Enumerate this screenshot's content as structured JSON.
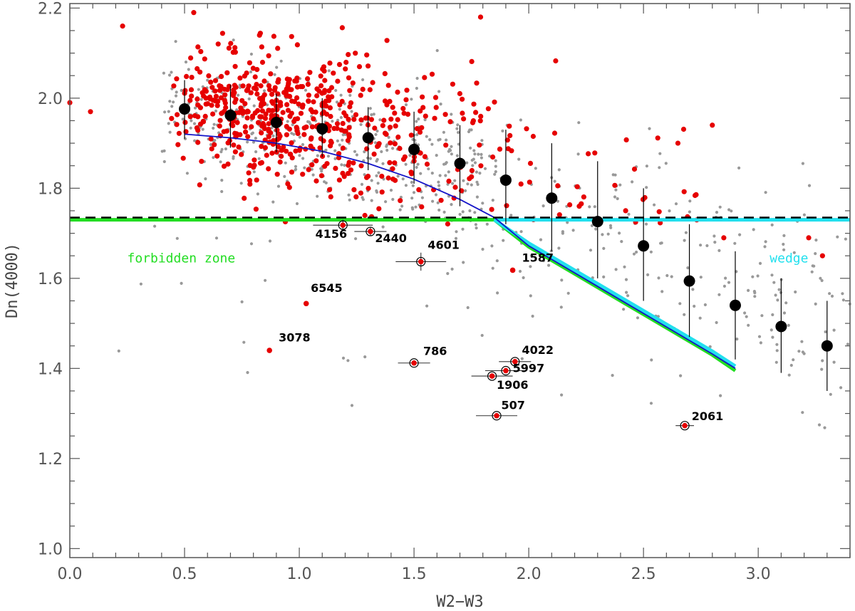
{
  "chart_data": {
    "type": "scatter",
    "xlabel": "W2−W3",
    "ylabel": "Dn(4000)",
    "xlim": [
      0.0,
      3.4
    ],
    "ylim": [
      0.98,
      2.21
    ],
    "x_ticks": [
      "0.0",
      "0.5",
      "1.0",
      "1.5",
      "2.0",
      "2.5",
      "3.0"
    ],
    "x_tick_values": [
      0.0,
      0.5,
      1.0,
      1.5,
      2.0,
      2.5,
      3.0
    ],
    "y_ticks": [
      "1.0",
      "1.2",
      "1.4",
      "1.6",
      "1.8",
      "2.0",
      "2.2"
    ],
    "y_tick_values": [
      1.0,
      1.2,
      1.4,
      1.6,
      1.8,
      2.0,
      2.2
    ],
    "colors": {
      "background_points": "#999999",
      "red_points": "#e60000",
      "binned_means": "#000000",
      "blue_curve": "#1414c8",
      "green_line": "#22dd22",
      "cyan_line": "#22e0ee",
      "dashed_line": "#000000"
    },
    "zone_labels": [
      {
        "text": "forbidden zone",
        "x": 0.25,
        "y": 1.635,
        "color": "#22dd22"
      },
      {
        "text": "wedge",
        "x": 3.05,
        "y": 1.635,
        "color": "#22e0ee"
      }
    ],
    "dashed_threshold": 1.735,
    "green_line": [
      [
        0.0,
        1.73
      ],
      [
        1.85,
        1.73
      ],
      [
        2.0,
        1.67
      ],
      [
        2.2,
        1.61
      ],
      [
        2.4,
        1.55
      ],
      [
        2.6,
        1.49
      ],
      [
        2.8,
        1.43
      ],
      [
        2.9,
        1.395
      ]
    ],
    "cyan_line": [
      [
        1.85,
        1.73
      ],
      [
        3.4,
        1.73
      ]
    ],
    "cyan_diag": [
      [
        1.85,
        1.73
      ],
      [
        2.0,
        1.678
      ],
      [
        2.2,
        1.618
      ],
      [
        2.4,
        1.558
      ],
      [
        2.6,
        1.498
      ],
      [
        2.8,
        1.438
      ],
      [
        2.9,
        1.405
      ]
    ],
    "blue_curve": [
      [
        0.5,
        1.92
      ],
      [
        0.7,
        1.912
      ],
      [
        0.9,
        1.9
      ],
      [
        1.1,
        1.882
      ],
      [
        1.3,
        1.855
      ],
      [
        1.5,
        1.82
      ],
      [
        1.7,
        1.775
      ],
      [
        1.85,
        1.735
      ],
      [
        2.0,
        1.672
      ],
      [
        2.2,
        1.612
      ],
      [
        2.4,
        1.552
      ],
      [
        2.6,
        1.492
      ],
      [
        2.8,
        1.432
      ],
      [
        2.9,
        1.4
      ]
    ],
    "binned_means": [
      {
        "x": 0.5,
        "y": 1.976,
        "lo": 1.91,
        "hi": 2.04
      },
      {
        "x": 0.7,
        "y": 1.962,
        "lo": 1.89,
        "hi": 2.03
      },
      {
        "x": 0.9,
        "y": 1.946,
        "lo": 1.88,
        "hi": 2.01
      },
      {
        "x": 1.1,
        "y": 1.932,
        "lo": 1.87,
        "hi": 2.0
      },
      {
        "x": 1.3,
        "y": 1.912,
        "lo": 1.84,
        "hi": 1.98
      },
      {
        "x": 1.5,
        "y": 1.886,
        "lo": 1.81,
        "hi": 1.97
      },
      {
        "x": 1.7,
        "y": 1.855,
        "lo": 1.76,
        "hi": 1.94
      },
      {
        "x": 1.9,
        "y": 1.818,
        "lo": 1.72,
        "hi": 1.93
      },
      {
        "x": 2.1,
        "y": 1.778,
        "lo": 1.66,
        "hi": 1.9
      },
      {
        "x": 2.3,
        "y": 1.726,
        "lo": 1.6,
        "hi": 1.86
      },
      {
        "x": 2.5,
        "y": 1.672,
        "lo": 1.55,
        "hi": 1.8
      },
      {
        "x": 2.7,
        "y": 1.594,
        "lo": 1.47,
        "hi": 1.72
      },
      {
        "x": 2.9,
        "y": 1.54,
        "lo": 1.42,
        "hi": 1.66
      },
      {
        "x": 3.1,
        "y": 1.493,
        "lo": 1.39,
        "hi": 1.6
      },
      {
        "x": 3.3,
        "y": 1.45,
        "lo": 1.35,
        "hi": 1.55
      }
    ],
    "labeled_sources": [
      {
        "label": "4156",
        "x": 1.19,
        "y": 1.718,
        "xerr": 0.13,
        "yerr": 0.012,
        "circled": true,
        "tx": 1.07,
        "ty": 1.69
      },
      {
        "label": "2440",
        "x": 1.31,
        "y": 1.704,
        "xerr": 0.07,
        "yerr": 0.01,
        "circled": true,
        "tx": 1.33,
        "ty": 1.68
      },
      {
        "label": "4601",
        "x": 1.53,
        "y": 1.637,
        "xerr": 0.11,
        "yerr": 0.02,
        "circled": true,
        "tx": 1.56,
        "ty": 1.665
      },
      {
        "label": "1587",
        "x": 1.93,
        "y": 1.618,
        "xerr": 0.0,
        "yerr": 0.0,
        "circled": false,
        "tx": 1.97,
        "ty": 1.637
      },
      {
        "label": "6545",
        "x": 1.03,
        "y": 1.544,
        "xerr": 0.0,
        "yerr": 0.0,
        "circled": false,
        "tx": 1.05,
        "ty": 1.57
      },
      {
        "label": "3078",
        "x": 0.87,
        "y": 1.44,
        "xerr": 0.0,
        "yerr": 0.0,
        "circled": false,
        "tx": 0.91,
        "ty": 1.46
      },
      {
        "label": "786",
        "x": 1.5,
        "y": 1.412,
        "xerr": 0.07,
        "yerr": 0.0,
        "circled": true,
        "tx": 1.54,
        "ty": 1.43
      },
      {
        "label": "4022",
        "x": 1.94,
        "y": 1.415,
        "xerr": 0.07,
        "yerr": 0.0,
        "circled": true,
        "tx": 1.97,
        "ty": 1.432
      },
      {
        "label": "5997",
        "x": 1.9,
        "y": 1.395,
        "xerr": 0.09,
        "yerr": 0.0,
        "circled": true,
        "tx": 1.93,
        "ty": 1.392
      },
      {
        "label": "1906",
        "x": 1.84,
        "y": 1.383,
        "xerr": 0.09,
        "yerr": 0.0,
        "circled": true,
        "tx": 1.86,
        "ty": 1.355
      },
      {
        "label": "507",
        "x": 1.86,
        "y": 1.295,
        "xerr": 0.09,
        "yerr": 0.0,
        "circled": true,
        "tx": 1.88,
        "ty": 1.31
      },
      {
        "label": "2061",
        "x": 2.68,
        "y": 1.273,
        "xerr": 0.04,
        "yerr": 0.0,
        "circled": true,
        "tx": 2.71,
        "ty": 1.285
      }
    ]
  }
}
